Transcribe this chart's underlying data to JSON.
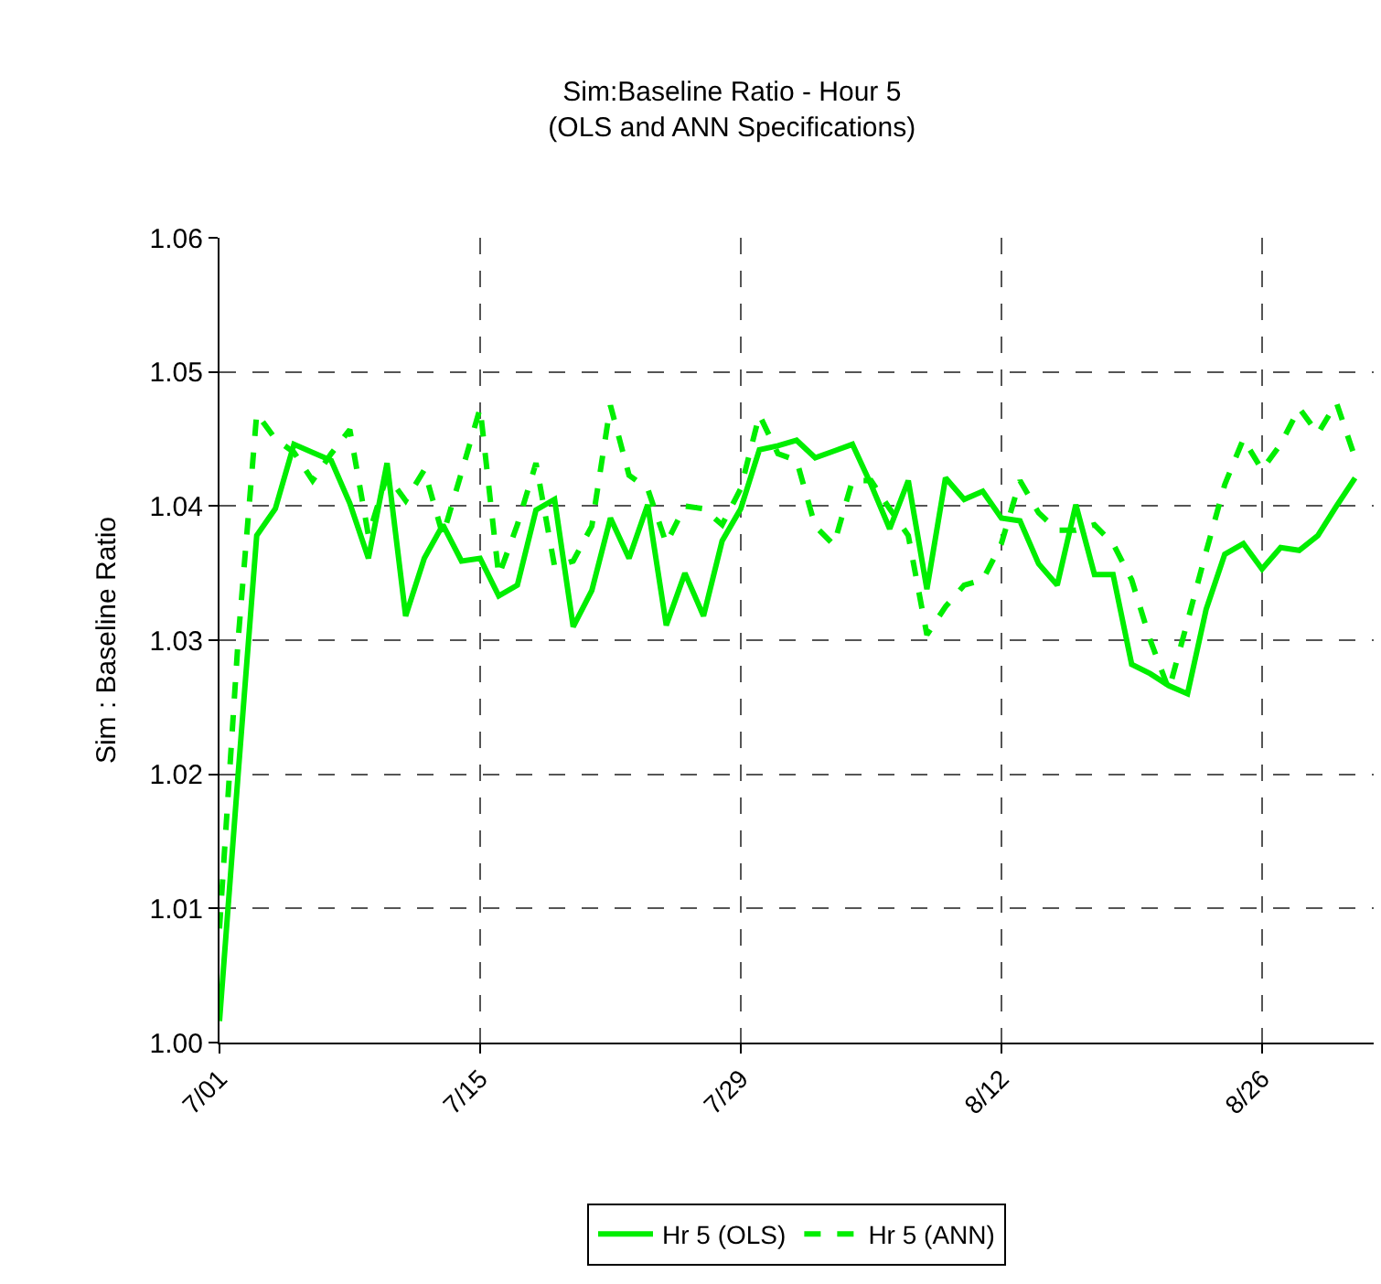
{
  "chart_data": {
    "type": "line",
    "title": "Sim:Baseline Ratio - Hour 5\n(OLS and ANN Specifications)",
    "ylabel": "Sim : Baseline Ratio",
    "x": [
      "--07-01",
      "--07-02",
      "--07-03",
      "--07-04",
      "--07-05",
      "--07-06",
      "--07-07",
      "--07-08",
      "--07-09",
      "--07-10",
      "--07-11",
      "--07-12",
      "--07-13",
      "--07-14",
      "--07-15",
      "--07-16",
      "--07-17",
      "--07-18",
      "--07-19",
      "--07-20",
      "--07-21",
      "--07-22",
      "--07-23",
      "--07-24",
      "--07-25",
      "--07-26",
      "--07-27",
      "--07-28",
      "--07-29",
      "--07-30",
      "--07-31",
      "--08-01",
      "--08-02",
      "--08-03",
      "--08-04",
      "--08-05",
      "--08-06",
      "--08-07",
      "--08-08",
      "--08-09",
      "--08-10",
      "--08-11",
      "--08-12",
      "--08-13",
      "--08-14",
      "--08-15",
      "--08-16",
      "--08-17",
      "--08-18",
      "--08-19",
      "--08-20",
      "--08-21",
      "--08-22",
      "--08-23",
      "--08-24",
      "--08-25",
      "--08-26",
      "--08-27",
      "--08-28",
      "--08-29",
      "--08-30",
      "--08-31"
    ],
    "series": [
      {
        "name": "Hr 5 (OLS)",
        "color": "#00ee00",
        "line_style": "solid",
        "values": [
          1.0016,
          1.02,
          1.0378,
          1.0398,
          1.0446,
          1.044,
          1.0434,
          1.0402,
          1.0361,
          1.0432,
          1.0318,
          1.0361,
          1.0386,
          1.0359,
          1.0361,
          1.0333,
          1.0341,
          1.0397,
          1.0405,
          1.031,
          1.0337,
          1.0391,
          1.0361,
          1.0401,
          1.0311,
          1.035,
          1.0318,
          1.0374,
          1.0398,
          1.0442,
          1.0445,
          1.0449,
          1.0436,
          1.0441,
          1.0446,
          1.0416,
          1.0383,
          1.0419,
          1.0338,
          1.0421,
          1.0405,
          1.0411,
          1.0391,
          1.0389,
          1.0357,
          1.0341,
          1.0401,
          1.0349,
          1.0349,
          1.0282,
          1.0275,
          1.0266,
          1.026,
          1.0323,
          1.0364,
          1.0372,
          1.0353,
          1.0369,
          1.0367,
          1.0378,
          1.04,
          1.0421
        ]
      },
      {
        "name": "Hr 5 (ANN)",
        "color": "#00ee00",
        "line_style": "dashed",
        "values": [
          1.0085,
          1.03,
          1.0469,
          1.045,
          1.044,
          1.0419,
          1.0439,
          1.0457,
          1.0378,
          1.0423,
          1.0404,
          1.0427,
          1.0378,
          1.0425,
          1.0473,
          1.0348,
          1.0386,
          1.0432,
          1.0355,
          1.0359,
          1.0385,
          1.0475,
          1.0423,
          1.0413,
          1.0372,
          1.04,
          1.0398,
          1.0386,
          1.0413,
          1.0468,
          1.0439,
          1.0434,
          1.0385,
          1.0371,
          1.0419,
          1.0419,
          1.0398,
          1.0378,
          1.0304,
          1.0325,
          1.0341,
          1.0345,
          1.0372,
          1.0419,
          1.0395,
          1.0382,
          1.0382,
          1.0386,
          1.0372,
          1.0345,
          1.03,
          1.0263,
          1.0314,
          1.0366,
          1.0416,
          1.045,
          1.0427,
          1.0446,
          1.0473,
          1.0454,
          1.0477,
          1.0436
        ]
      }
    ],
    "xlim": [
      "--07-01",
      "--09-01"
    ],
    "xticks": [
      {
        "value": "--07-01",
        "label": "7/01"
      },
      {
        "value": "--07-15",
        "label": "7/15"
      },
      {
        "value": "--07-29",
        "label": "7/29"
      },
      {
        "value": "--08-12",
        "label": "8/12"
      },
      {
        "value": "--08-26",
        "label": "8/26"
      }
    ],
    "ylim": [
      1.0,
      1.06
    ],
    "yticks": [
      {
        "value": 1.0,
        "label": "1.00"
      },
      {
        "value": 1.01,
        "label": "1.01"
      },
      {
        "value": 1.02,
        "label": "1.02"
      },
      {
        "value": 1.03,
        "label": "1.03"
      },
      {
        "value": 1.04,
        "label": "1.04"
      },
      {
        "value": 1.05,
        "label": "1.05"
      },
      {
        "value": 1.06,
        "label": "1.06"
      }
    ],
    "grid": true,
    "legend": "bottom",
    "marker": "none"
  }
}
